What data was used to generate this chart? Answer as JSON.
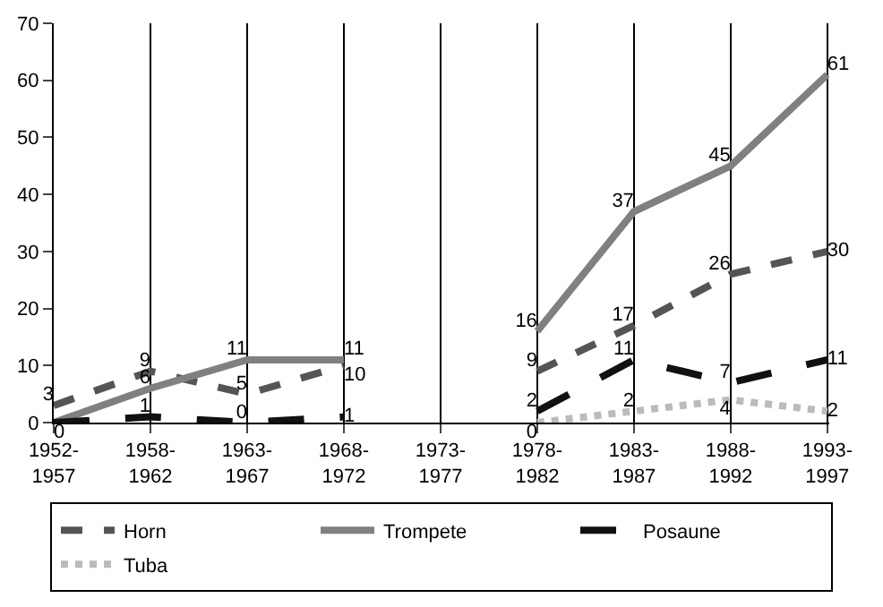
{
  "chart_data": {
    "type": "line",
    "categories": [
      "1952-\n1957",
      "1958-\n1962",
      "1963-\n1967",
      "1968-\n1972",
      "1973-\n1977",
      "1978-\n1982",
      "1983-\n1987",
      "1988-\n1992",
      "1993-\n1997"
    ],
    "series": [
      {
        "name": "Horn",
        "color": "#555555",
        "line_style": "dashed",
        "values": [
          3,
          9,
          5,
          10,
          null,
          9,
          17,
          26,
          30
        ],
        "value_labels": [
          "3",
          "9",
          "5",
          "10",
          null,
          "9",
          "17",
          "26",
          "30"
        ]
      },
      {
        "name": "Trompete",
        "color": "#808080",
        "line_style": "solid",
        "values": [
          0,
          6,
          11,
          11,
          null,
          16,
          37,
          45,
          61
        ],
        "value_labels": [
          "0",
          "6",
          "11",
          "11",
          null,
          "16",
          "37",
          "45",
          "61"
        ]
      },
      {
        "name": "Posaune",
        "color": "#111111",
        "line_style": "longdash",
        "values": [
          0,
          1,
          0,
          1,
          null,
          2,
          11,
          7,
          11
        ],
        "value_labels": [
          null,
          "1",
          "0",
          "1",
          null,
          "2",
          "11",
          "7",
          "11"
        ]
      },
      {
        "name": "Tuba",
        "color": "#bbbbbb",
        "line_style": "dotted",
        "values": [
          null,
          null,
          null,
          null,
          null,
          0,
          2,
          4,
          2
        ],
        "value_labels": [
          null,
          null,
          null,
          null,
          null,
          "0",
          "2",
          "4",
          "2"
        ]
      }
    ],
    "ylim": [
      0,
      70
    ],
    "yticks": [
      0,
      10,
      20,
      30,
      40,
      50,
      60,
      70
    ],
    "grid": "x",
    "legend": "bottom",
    "marker": "none"
  }
}
